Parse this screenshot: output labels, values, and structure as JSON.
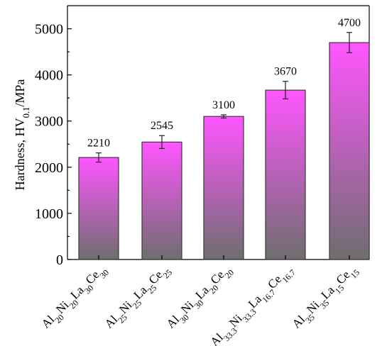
{
  "chart_data": {
    "type": "bar",
    "categories_parts": [
      [
        [
          "Al",
          ""
        ],
        [
          "20",
          "sub"
        ],
        [
          "Ni",
          ""
        ],
        [
          "20",
          "sub"
        ],
        [
          "La",
          ""
        ],
        [
          "30",
          "sub"
        ],
        [
          "Ce",
          ""
        ],
        [
          "30",
          "sub"
        ]
      ],
      [
        [
          "Al",
          ""
        ],
        [
          "25",
          "sub"
        ],
        [
          "Ni",
          ""
        ],
        [
          "25",
          "sub"
        ],
        [
          "La",
          ""
        ],
        [
          "25",
          "sub"
        ],
        [
          "Ce",
          ""
        ],
        [
          "25",
          "sub"
        ]
      ],
      [
        [
          "Al",
          ""
        ],
        [
          "30",
          "sub"
        ],
        [
          "Ni",
          ""
        ],
        [
          "30",
          "sub"
        ],
        [
          "La",
          ""
        ],
        [
          "20",
          "sub"
        ],
        [
          "Ce",
          ""
        ],
        [
          "20",
          "sub"
        ]
      ],
      [
        [
          "Al",
          ""
        ],
        [
          "33.3",
          "sub"
        ],
        [
          "Ni",
          ""
        ],
        [
          "33.3",
          "sub"
        ],
        [
          "La",
          ""
        ],
        [
          "16.7",
          "sub"
        ],
        [
          "Ce",
          ""
        ],
        [
          "16.7",
          "sub"
        ]
      ],
      [
        [
          "Al",
          ""
        ],
        [
          "35",
          "sub"
        ],
        [
          "Ni",
          ""
        ],
        [
          "35",
          "sub"
        ],
        [
          "La",
          ""
        ],
        [
          "15",
          "sub"
        ],
        [
          "Ce",
          ""
        ],
        [
          "15",
          "sub"
        ]
      ]
    ],
    "values": [
      2210,
      2545,
      3100,
      3670,
      4700
    ],
    "value_labels": [
      "2210",
      "2545",
      "3100",
      "3670",
      "4700"
    ],
    "errors": [
      100,
      140,
      35,
      190,
      220
    ],
    "ylabel_parts": [
      [
        "Hardness, HV",
        ""
      ],
      [
        "0.1",
        "sub"
      ],
      [
        "/MPa",
        ""
      ]
    ],
    "ylim": [
      0,
      5500
    ],
    "yticks": [
      0,
      1000,
      2000,
      3000,
      4000,
      5000
    ],
    "ytick_labels": [
      "0",
      "1000",
      "2000",
      "3000",
      "4000",
      "5000"
    ],
    "bar_color_top": "#ff55ff",
    "bar_color_bottom": "#6e6e6e",
    "bar_edge_color": "#3a3a3a"
  }
}
